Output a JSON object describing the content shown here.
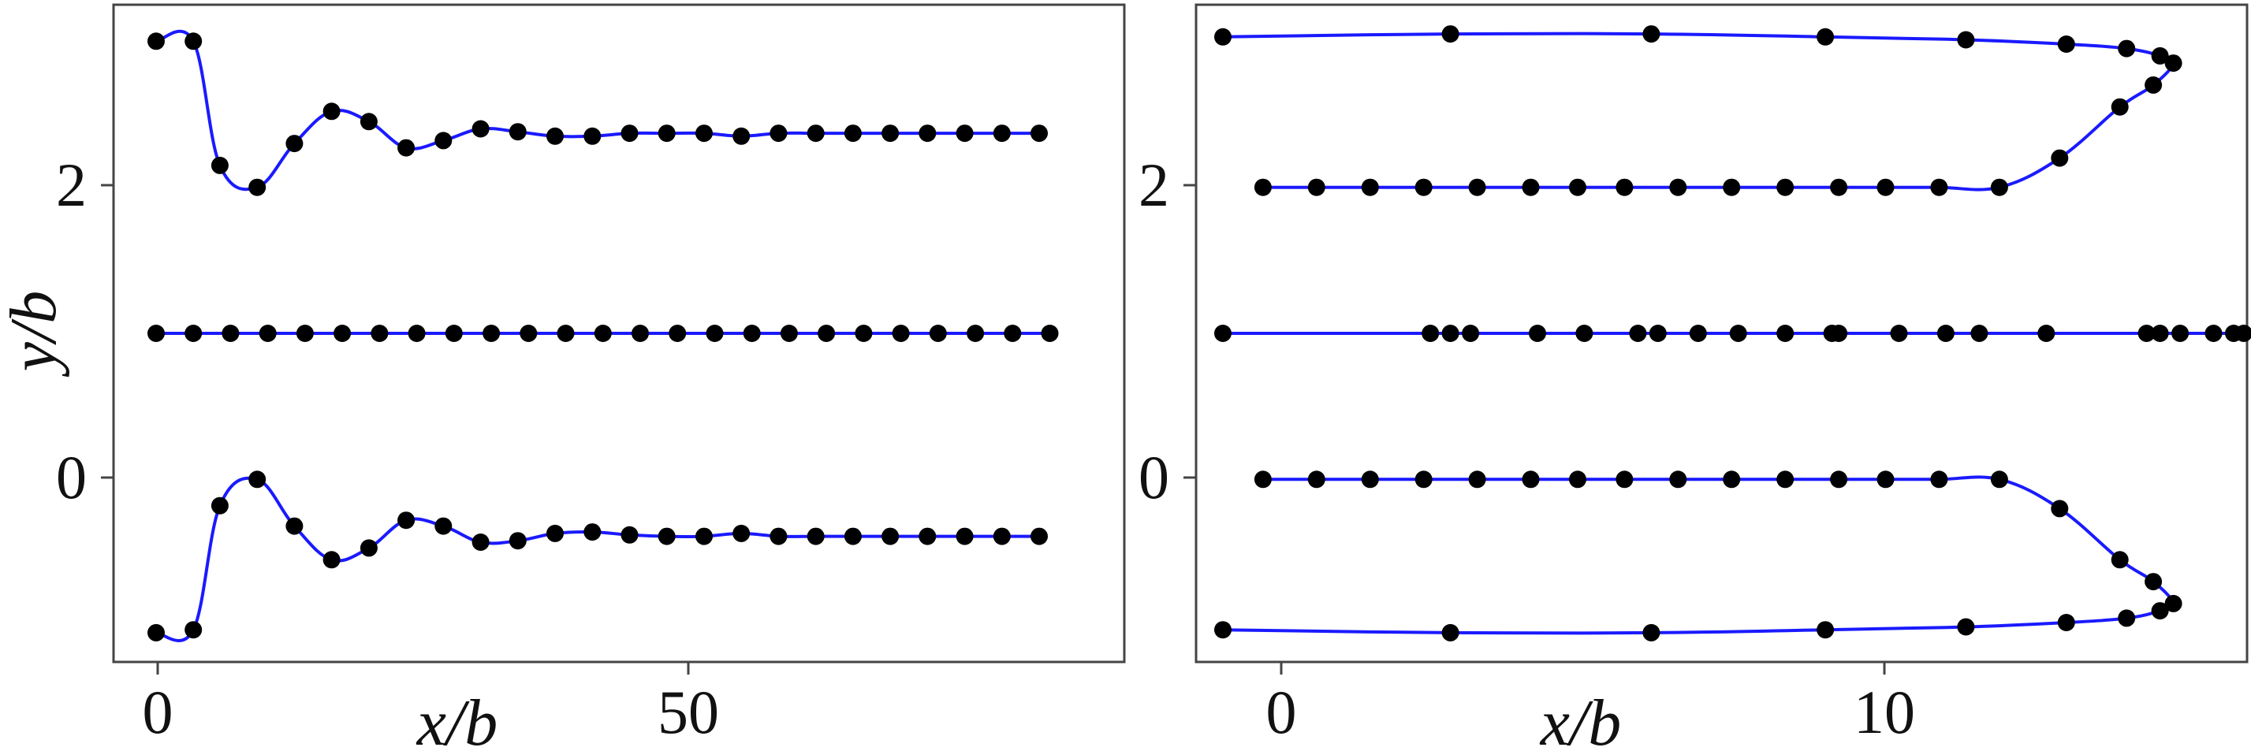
{
  "chart_data": [
    {
      "type": "line",
      "panel": "left",
      "title": "",
      "xlabel": "x/b",
      "ylabel": "y/b",
      "xlim": [
        -4,
        91
      ],
      "ylim": [
        -1.25,
        3.25
      ],
      "xticks": [
        0,
        50
      ],
      "yticks": [
        0,
        2
      ],
      "grid": false,
      "legend": "none",
      "colors": {
        "line": "#1a1aff",
        "marker": "#000000"
      },
      "series": [
        {
          "points": [
            [
              0,
              3
            ],
            [
              3.5,
              3
            ],
            [
              6,
              2.15
            ],
            [
              9.5,
              2.0
            ],
            [
              13,
              2.3
            ],
            [
              16.5,
              2.52
            ],
            [
              20,
              2.45
            ],
            [
              23.5,
              2.27
            ],
            [
              27,
              2.32
            ],
            [
              30.5,
              2.4
            ],
            [
              34,
              2.38
            ],
            [
              37.5,
              2.35
            ],
            [
              41,
              2.35
            ],
            [
              44.5,
              2.37
            ],
            [
              48,
              2.37
            ],
            [
              51.5,
              2.37
            ],
            [
              55,
              2.35
            ],
            [
              58.5,
              2.37
            ],
            [
              62,
              2.37
            ],
            [
              65.5,
              2.37
            ],
            [
              69,
              2.37
            ],
            [
              72.5,
              2.37
            ],
            [
              76,
              2.37
            ],
            [
              79.5,
              2.37
            ],
            [
              83,
              2.37
            ]
          ]
        },
        {
          "points": [
            [
              0,
              1
            ],
            [
              3.5,
              1
            ],
            [
              7,
              1
            ],
            [
              10.5,
              1
            ],
            [
              14,
              1
            ],
            [
              17.5,
              1
            ],
            [
              21,
              1
            ],
            [
              24.5,
              1
            ],
            [
              28,
              1
            ],
            [
              31.5,
              1
            ],
            [
              35,
              1
            ],
            [
              38.5,
              1
            ],
            [
              42,
              1
            ],
            [
              45.5,
              1
            ],
            [
              49,
              1
            ],
            [
              52.5,
              1
            ],
            [
              56,
              1
            ],
            [
              59.5,
              1
            ],
            [
              63,
              1
            ],
            [
              66.5,
              1
            ],
            [
              70,
              1
            ],
            [
              73.5,
              1
            ],
            [
              77,
              1
            ],
            [
              80.5,
              1
            ],
            [
              84,
              1
            ]
          ]
        },
        {
          "points": [
            [
              0,
              -1.05
            ],
            [
              3.5,
              -1.03
            ],
            [
              6,
              -0.18
            ],
            [
              9.5,
              0.0
            ],
            [
              13,
              -0.32
            ],
            [
              16.5,
              -0.55
            ],
            [
              20,
              -0.47
            ],
            [
              23.5,
              -0.28
            ],
            [
              27,
              -0.32
            ],
            [
              30.5,
              -0.43
            ],
            [
              34,
              -0.42
            ],
            [
              37.5,
              -0.37
            ],
            [
              41,
              -0.36
            ],
            [
              44.5,
              -0.38
            ],
            [
              48,
              -0.39
            ],
            [
              51.5,
              -0.39
            ],
            [
              55,
              -0.37
            ],
            [
              58.5,
              -0.39
            ],
            [
              62,
              -0.39
            ],
            [
              65.5,
              -0.39
            ],
            [
              69,
              -0.39
            ],
            [
              72.5,
              -0.39
            ],
            [
              76,
              -0.39
            ],
            [
              79.5,
              -0.39
            ],
            [
              83,
              -0.39
            ]
          ]
        }
      ]
    },
    {
      "type": "line",
      "panel": "right",
      "title": "",
      "xlabel": "x/b",
      "ylabel": "",
      "xlim": [
        -0.4,
        15.3
      ],
      "ylim": [
        -1.25,
        3.25
      ],
      "xticks": [
        0,
        10
      ],
      "yticks": [
        0,
        2
      ],
      "grid": false,
      "legend": "none",
      "colors": {
        "line": "#1a1aff",
        "marker": "#000000"
      },
      "series": [
        {
          "points": [
            [
              0,
              3.03
            ],
            [
              3.4,
              3.05
            ],
            [
              6.4,
              3.05
            ],
            [
              9,
              3.03
            ],
            [
              11.1,
              3.01
            ],
            [
              12.6,
              2.98
            ],
            [
              13.5,
              2.95
            ],
            [
              14.0,
              2.9
            ],
            [
              14.2,
              2.85
            ],
            [
              13.9,
              2.7
            ],
            [
              13.4,
              2.55
            ],
            [
              12.5,
              2.2
            ],
            [
              11.6,
              2.0
            ],
            [
              10.7,
              2.0
            ],
            [
              9.9,
              2.0
            ],
            [
              9.2,
              2.0
            ],
            [
              8.4,
              2.0
            ],
            [
              7.6,
              2.0
            ],
            [
              6.8,
              2.0
            ],
            [
              6.0,
              2.0
            ],
            [
              5.3,
              2.0
            ],
            [
              4.6,
              2.0
            ],
            [
              3.8,
              2.0
            ],
            [
              3.0,
              2.0
            ],
            [
              2.2,
              2.0
            ],
            [
              1.4,
              2.0
            ],
            [
              0.6,
              2.0
            ]
          ]
        },
        {
          "points": [
            [
              0,
              1
            ],
            [
              3.1,
              1
            ],
            [
              3.4,
              1
            ],
            [
              3.7,
              1
            ],
            [
              4.7,
              1
            ],
            [
              5.4,
              1
            ],
            [
              6.2,
              1
            ],
            [
              6.5,
              1
            ],
            [
              7.1,
              1
            ],
            [
              7.7,
              1
            ],
            [
              8.4,
              1
            ],
            [
              9.1,
              1
            ],
            [
              9.2,
              1
            ],
            [
              10.1,
              1
            ],
            [
              10.8,
              1
            ],
            [
              11.3,
              1
            ],
            [
              12.3,
              1
            ],
            [
              13.8,
              1
            ],
            [
              14.0,
              1
            ],
            [
              14.3,
              1
            ],
            [
              14.8,
              1
            ],
            [
              15.1,
              1
            ],
            [
              15.25,
              1
            ]
          ]
        },
        {
          "points": [
            [
              0,
              -1.03
            ],
            [
              3.4,
              -1.05
            ],
            [
              6.4,
              -1.05
            ],
            [
              9,
              -1.03
            ],
            [
              11.1,
              -1.01
            ],
            [
              12.6,
              -0.98
            ],
            [
              13.5,
              -0.95
            ],
            [
              14.0,
              -0.9
            ],
            [
              14.2,
              -0.85
            ],
            [
              13.9,
              -0.7
            ],
            [
              13.4,
              -0.55
            ],
            [
              12.5,
              -0.2
            ],
            [
              11.6,
              0.0
            ],
            [
              10.7,
              0.0
            ],
            [
              9.9,
              0.0
            ],
            [
              9.2,
              0.0
            ],
            [
              8.4,
              0.0
            ],
            [
              7.6,
              0.0
            ],
            [
              6.8,
              0.0
            ],
            [
              6.0,
              0.0
            ],
            [
              5.3,
              0.0
            ],
            [
              4.6,
              0.0
            ],
            [
              3.8,
              0.0
            ],
            [
              3.0,
              0.0
            ],
            [
              2.2,
              0.0
            ],
            [
              1.4,
              0.0
            ],
            [
              0.6,
              0.0
            ]
          ]
        }
      ]
    }
  ]
}
